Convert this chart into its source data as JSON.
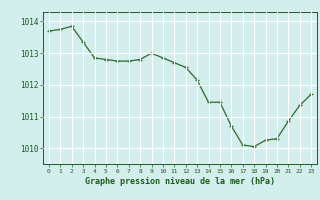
{
  "x": [
    0,
    1,
    2,
    3,
    4,
    5,
    6,
    7,
    8,
    9,
    10,
    11,
    12,
    13,
    14,
    15,
    16,
    17,
    18,
    19,
    20,
    21,
    22,
    23
  ],
  "y": [
    1013.7,
    1013.75,
    1013.85,
    1013.35,
    1012.85,
    1012.8,
    1012.75,
    1012.75,
    1012.8,
    1013.0,
    1012.85,
    1012.7,
    1012.55,
    1012.15,
    1011.45,
    1011.45,
    1010.7,
    1010.1,
    1010.05,
    1010.25,
    1010.3,
    1010.85,
    1011.35,
    1011.7
  ],
  "line_color": "#2d6a2d",
  "marker_color": "#2d6a2d",
  "bg_color": "#d4eeed",
  "grid_color": "#ffffff",
  "xlabel": "Graphe pression niveau de la mer (hPa)",
  "xlabel_color": "#1a5c1a",
  "tick_color": "#1a5c1a",
  "ylim": [
    1009.5,
    1014.3
  ],
  "yticks": [
    1010,
    1011,
    1012,
    1013,
    1014
  ],
  "xticks": [
    0,
    1,
    2,
    3,
    4,
    5,
    6,
    7,
    8,
    9,
    10,
    11,
    12,
    13,
    14,
    15,
    16,
    17,
    18,
    19,
    20,
    21,
    22,
    23
  ]
}
